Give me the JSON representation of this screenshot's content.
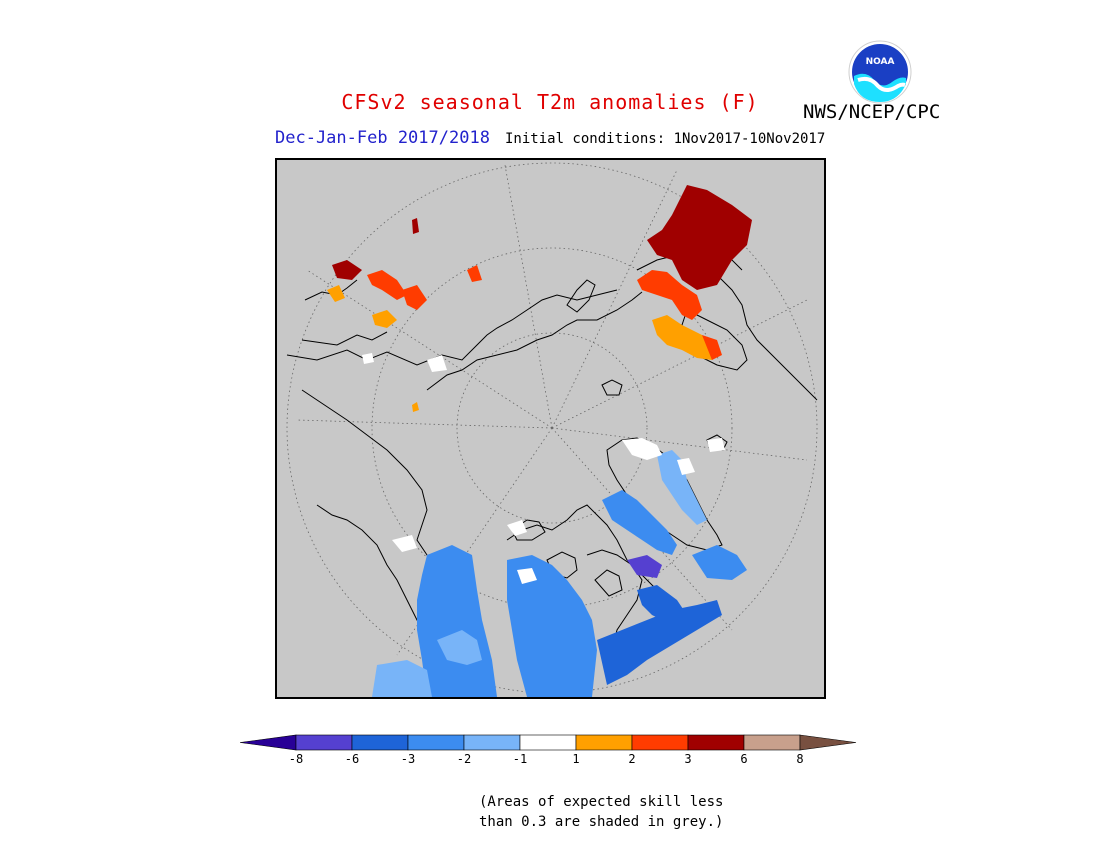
{
  "header": {
    "title": "CFSv2 seasonal T2m anomalies (F)",
    "title_color": "#e00000",
    "agency": "NWS/NCEP/CPC",
    "logo_text": "NOAA",
    "season": "Dec-Jan-Feb 2017/2018",
    "season_color": "#2222cc",
    "initial_conditions": "Initial conditions: 1Nov2017-10Nov2017"
  },
  "map": {
    "projection": "north-polar-stereographic",
    "background_color": "#c8c8c8",
    "no_skill_shading": "grey"
  },
  "legend": {
    "colors": [
      "#280096",
      "#5540d0",
      "#1e64d8",
      "#3c8cf0",
      "#78b4f8",
      "#ffffff",
      "#ffa000",
      "#ff3c00",
      "#a00000",
      "#c8a08c",
      "#785040"
    ],
    "labels": [
      "-8",
      "-6",
      "-3",
      "-2",
      "-1",
      "1",
      "2",
      "3",
      "6",
      "8"
    ]
  },
  "footnote": {
    "line1": "(Areas of expected skill less",
    "line2": "than 0.3 are shaded in grey.)"
  }
}
